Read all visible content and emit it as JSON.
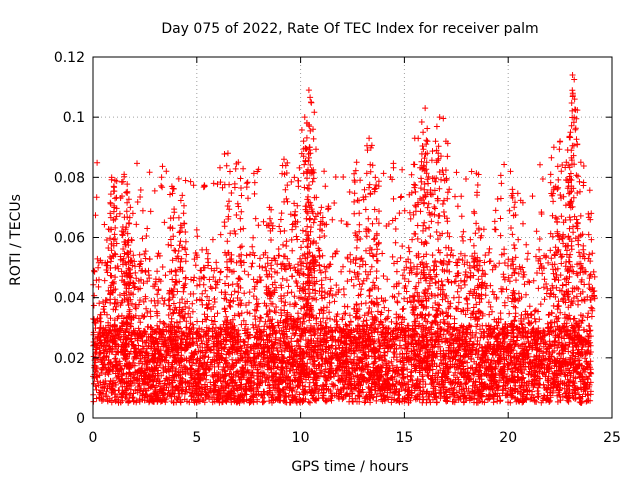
{
  "chart_data": {
    "type": "scatter",
    "title": "Day 075 of 2022, Rate Of TEC Index for receiver palm",
    "xlabel": "GPS time / hours",
    "ylabel": "ROTI / TECUs",
    "xlim": [
      0,
      25
    ],
    "ylim": [
      0,
      0.12
    ],
    "xticks": [
      0,
      5,
      10,
      15,
      20,
      25
    ],
    "xtick_labels": [
      "0",
      "5",
      "10",
      "15",
      "20",
      "25"
    ],
    "yticks": [
      0,
      0.02,
      0.04,
      0.06,
      0.08,
      0.1,
      0.12
    ],
    "ytick_labels": [
      "0",
      "0.02",
      "0.04",
      "0.06",
      "0.08",
      "0.1",
      "0.12"
    ],
    "grid": true,
    "marker": "+",
    "color": "#ff0000",
    "data_x_range": [
      0,
      24
    ],
    "background_band": [
      0.005,
      0.03
    ],
    "series": [
      {
        "name": "ROTI",
        "x": [
          0.9,
          1.0,
          1.5,
          1.6,
          1.8,
          3.8,
          4.3,
          6.5,
          7.0,
          8.5,
          9.2,
          9.7,
          10.2,
          10.3,
          10.4,
          10.5,
          10.6,
          11.0,
          12.7,
          13.3,
          13.6,
          15.5,
          15.9,
          16.0,
          16.1,
          16.5,
          16.7,
          17.0,
          18.5,
          20.2,
          22.2,
          22.5,
          22.8,
          23.0,
          23.1,
          23.2,
          23.5,
          24.0
        ],
        "y": [
          0.08,
          0.077,
          0.081,
          0.075,
          0.07,
          0.077,
          0.074,
          0.088,
          0.085,
          0.07,
          0.086,
          0.08,
          0.1,
          0.098,
          0.109,
          0.105,
          0.096,
          0.07,
          0.085,
          0.093,
          0.08,
          0.093,
          0.095,
          0.103,
          0.088,
          0.092,
          0.1,
          0.092,
          0.075,
          0.076,
          0.09,
          0.092,
          0.085,
          0.095,
          0.114,
          0.106,
          0.085,
          0.068
        ]
      }
    ]
  }
}
